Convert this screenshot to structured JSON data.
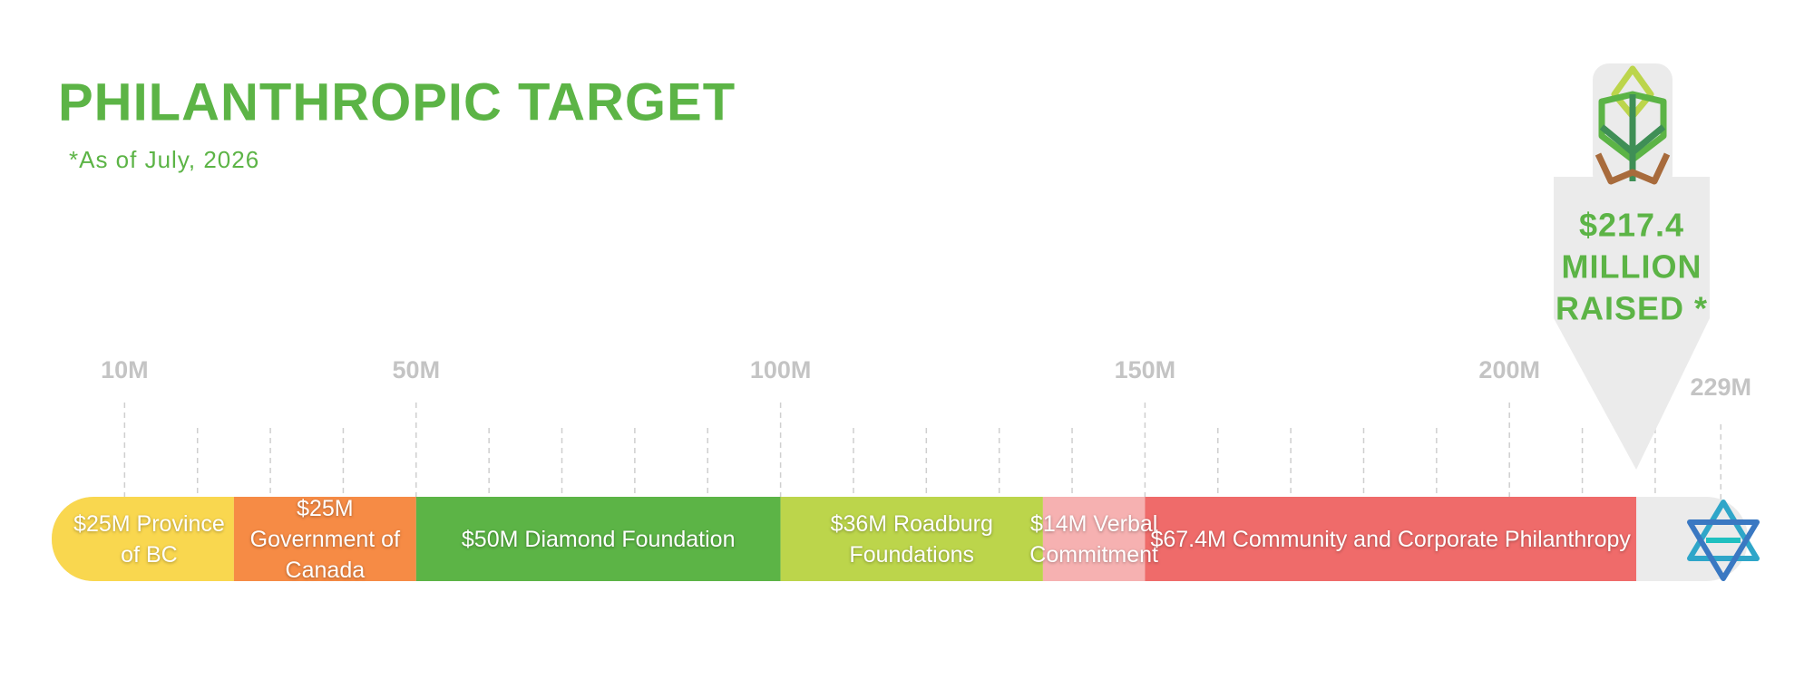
{
  "chart_data": {
    "type": "progress",
    "title": "PHILANTHROPIC TARGET",
    "subtitle": "*As of July, 2026",
    "xlim": [
      0,
      229
    ],
    "xticks": [
      {
        "value": 10,
        "label": "10M"
      },
      {
        "value": 50,
        "label": "50M"
      },
      {
        "value": 100,
        "label": "100M"
      },
      {
        "value": 150,
        "label": "150M"
      },
      {
        "value": 200,
        "label": "200M"
      },
      {
        "value": 229,
        "label": "229M"
      }
    ],
    "minor_xticks": [
      20,
      30,
      40,
      60,
      70,
      80,
      90,
      110,
      120,
      130,
      140,
      160,
      170,
      180,
      190,
      210,
      220
    ],
    "grid": true,
    "track_color": "#ebebeb",
    "series": [
      {
        "name": "$25M Province of BC",
        "color": "#f9d74f",
        "values": [
          25
        ]
      },
      {
        "name": "$25M Government of Canada",
        "color": "#f68b45",
        "values": [
          25
        ]
      },
      {
        "name": "$50M Diamond Foundation",
        "color": "#5cb446",
        "values": [
          50
        ]
      },
      {
        "name": "$36M Roadburg Foundations",
        "color": "#bcd54b",
        "values": [
          36
        ]
      },
      {
        "name": "$14M Verbal Commitment",
        "color": "#f6b1b1",
        "values": [
          14
        ]
      },
      {
        "name": "$67.4M Community and Corporate Philanthropy",
        "color": "#ef6b6a",
        "values": [
          67.4
        ]
      }
    ],
    "annotation": {
      "value": 217.4,
      "lines": [
        "$217.4",
        "MILLION",
        "RAISED *"
      ]
    }
  }
}
